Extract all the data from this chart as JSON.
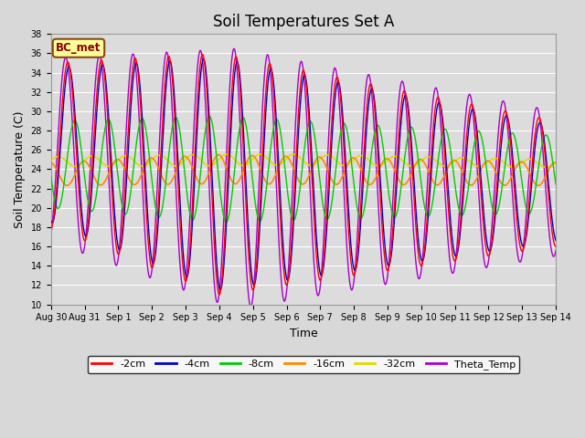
{
  "title": "Soil Temperatures Set A",
  "xlabel": "Time",
  "ylabel": "Soil Temperature (C)",
  "ylim": [
    10,
    38
  ],
  "annotation": "BC_met",
  "x_tick_labels": [
    "Aug 30",
    "Aug 31",
    "Sep 1",
    "Sep 2",
    "Sep 3",
    "Sep 4",
    "Sep 5",
    "Sep 6",
    "Sep 7",
    "Sep 8",
    "Sep 9",
    "Sep 10",
    "Sep 11",
    "Sep 12",
    "Sep 13",
    "Sep 14"
  ],
  "series_colors": {
    "-2cm": "#ff0000",
    "-4cm": "#0000cc",
    "-8cm": "#00cc00",
    "-16cm": "#ff8800",
    "-32cm": "#dddd00",
    "Theta_Temp": "#aa00cc"
  },
  "figsize": [
    6.4,
    4.8
  ],
  "dpi": 100,
  "bg_color": "#dcdcdc",
  "grid_color": "#ffffff",
  "title_fontsize": 12,
  "tick_fontsize": 7,
  "axis_fontsize": 9
}
